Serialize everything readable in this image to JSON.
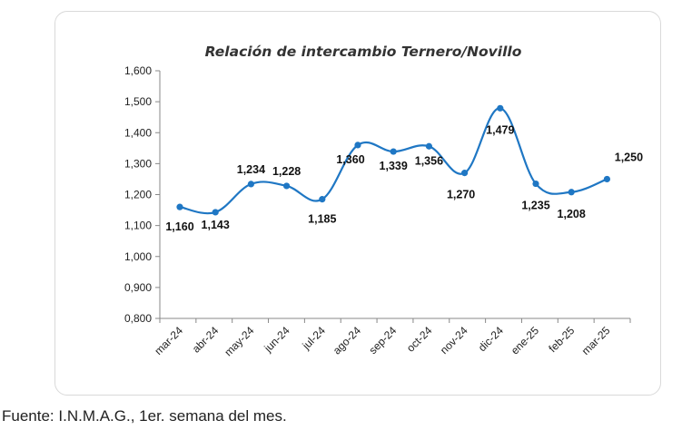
{
  "chart_data": {
    "type": "line",
    "title": "Relación de intercambio Ternero/Novillo",
    "xlabel": "",
    "ylabel": "",
    "categories": [
      "mar-24",
      "abr-24",
      "may-24",
      "jun-24",
      "jul-24",
      "ago-24",
      "sep-24",
      "oct-24",
      "nov-24",
      "dic-24",
      "ene-25",
      "feb-25",
      "mar-25"
    ],
    "series": [
      {
        "values": [
          1.16,
          1.143,
          1.234,
          1.228,
          1.185,
          1.36,
          1.339,
          1.356,
          1.27,
          1.479,
          1.235,
          1.208,
          1.25
        ],
        "labels": [
          "1,160",
          "1,143",
          "1,234",
          "1,228",
          "1,185",
          "1,360",
          "1,339",
          "1,356",
          "1,270",
          "1,479",
          "1,235",
          "1,208",
          "1,250"
        ],
        "color": "#1f77c4"
      }
    ],
    "yticks": [
      0.8,
      0.9,
      1.0,
      1.1,
      1.2,
      1.3,
      1.4,
      1.5,
      1.6
    ],
    "ytick_labels": [
      "0,800",
      "0,900",
      "1,000",
      "1,100",
      "1,200",
      "1,300",
      "1,400",
      "1,500",
      "1,600"
    ],
    "ylim": [
      0.8,
      1.6
    ],
    "grid": false,
    "smooth": true
  },
  "source_note": "Fuente: I.N.M.A.G., 1er. semana del mes."
}
